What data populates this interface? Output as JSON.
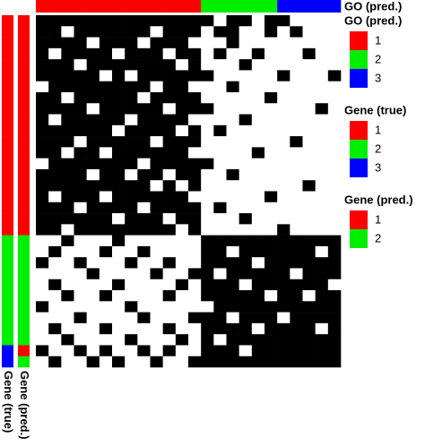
{
  "chart_data": {
    "type": "heatmap",
    "low_color": "#ffffff",
    "high_color": "#000000",
    "matrix": [
      [
        1,
        1,
        1,
        1,
        1,
        1,
        1,
        1,
        1,
        1,
        1,
        1,
        1,
        1,
        0,
        1,
        1,
        0,
        1,
        1,
        0,
        0,
        0,
        0
      ],
      [
        1,
        1,
        0,
        1,
        1,
        1,
        1,
        1,
        1,
        0,
        1,
        1,
        1,
        0,
        1,
        1,
        0,
        0,
        1,
        0,
        1,
        0,
        0,
        0
      ],
      [
        1,
        1,
        1,
        1,
        0,
        1,
        1,
        1,
        0,
        1,
        1,
        1,
        0,
        0,
        0,
        1,
        0,
        0,
        0,
        0,
        0,
        0,
        0,
        0
      ],
      [
        1,
        0,
        1,
        1,
        1,
        1,
        0,
        1,
        1,
        1,
        0,
        1,
        1,
        0,
        1,
        0,
        0,
        1,
        0,
        0,
        0,
        1,
        0,
        0
      ],
      [
        1,
        1,
        1,
        0,
        1,
        1,
        1,
        1,
        1,
        1,
        1,
        0,
        1,
        0,
        0,
        0,
        1,
        0,
        0,
        0,
        0,
        0,
        0,
        0
      ],
      [
        1,
        1,
        1,
        1,
        1,
        0,
        1,
        0,
        1,
        1,
        1,
        1,
        1,
        1,
        0,
        0,
        0,
        0,
        0,
        1,
        0,
        0,
        0,
        1
      ],
      [
        0,
        1,
        1,
        1,
        1,
        1,
        1,
        1,
        1,
        0,
        1,
        1,
        0,
        0,
        0,
        1,
        0,
        0,
        0,
        0,
        0,
        0,
        0,
        0
      ],
      [
        1,
        1,
        0,
        1,
        1,
        1,
        1,
        1,
        0,
        1,
        1,
        1,
        1,
        0,
        0,
        0,
        0,
        0,
        1,
        0,
        0,
        0,
        0,
        0
      ],
      [
        1,
        1,
        1,
        1,
        0,
        1,
        1,
        1,
        1,
        1,
        0,
        1,
        1,
        1,
        0,
        0,
        0,
        0,
        0,
        0,
        0,
        0,
        1,
        0
      ],
      [
        1,
        0,
        1,
        1,
        1,
        1,
        1,
        0,
        1,
        1,
        1,
        1,
        0,
        0,
        0,
        0,
        1,
        0,
        0,
        0,
        0,
        0,
        0,
        0
      ],
      [
        1,
        1,
        1,
        1,
        1,
        1,
        0,
        1,
        1,
        1,
        1,
        0,
        1,
        0,
        1,
        0,
        0,
        0,
        0,
        0,
        0,
        0,
        0,
        0
      ],
      [
        1,
        1,
        1,
        0,
        1,
        1,
        1,
        1,
        1,
        0,
        1,
        1,
        1,
        0,
        0,
        0,
        0,
        0,
        0,
        0,
        1,
        0,
        0,
        0
      ],
      [
        1,
        1,
        0,
        1,
        1,
        0,
        1,
        1,
        1,
        1,
        1,
        1,
        0,
        0,
        0,
        0,
        0,
        1,
        0,
        0,
        0,
        0,
        0,
        0
      ],
      [
        0,
        1,
        1,
        1,
        1,
        1,
        1,
        1,
        0,
        1,
        1,
        1,
        1,
        1,
        0,
        0,
        0,
        0,
        0,
        0,
        0,
        0,
        0,
        0
      ],
      [
        1,
        1,
        1,
        1,
        0,
        1,
        1,
        0,
        1,
        1,
        0,
        1,
        1,
        0,
        0,
        1,
        0,
        0,
        0,
        0,
        0,
        0,
        0,
        0
      ],
      [
        1,
        1,
        1,
        1,
        1,
        1,
        1,
        1,
        1,
        0,
        1,
        0,
        1,
        0,
        0,
        0,
        0,
        0,
        0,
        0,
        0,
        1,
        0,
        0
      ],
      [
        1,
        0,
        1,
        1,
        1,
        0,
        1,
        1,
        1,
        1,
        1,
        1,
        0,
        0,
        0,
        0,
        0,
        0,
        1,
        0,
        0,
        0,
        0,
        0
      ],
      [
        1,
        1,
        1,
        0,
        1,
        1,
        1,
        1,
        0,
        1,
        1,
        1,
        1,
        0,
        1,
        0,
        0,
        0,
        0,
        0,
        0,
        0,
        0,
        0
      ],
      [
        1,
        1,
        1,
        1,
        1,
        1,
        0,
        1,
        1,
        1,
        0,
        1,
        1,
        0,
        0,
        0,
        1,
        0,
        0,
        0,
        0,
        0,
        0,
        0
      ],
      [
        1,
        1,
        0,
        1,
        1,
        1,
        1,
        1,
        1,
        1,
        1,
        0,
        1,
        0,
        0,
        0,
        0,
        0,
        0,
        1,
        0,
        0,
        0,
        0
      ],
      [
        0,
        0,
        1,
        0,
        0,
        0,
        1,
        0,
        0,
        0,
        0,
        0,
        0,
        1,
        1,
        1,
        1,
        1,
        1,
        1,
        1,
        1,
        1,
        1
      ],
      [
        0,
        1,
        0,
        0,
        0,
        1,
        0,
        0,
        1,
        0,
        0,
        0,
        0,
        1,
        1,
        0,
        1,
        1,
        1,
        1,
        1,
        1,
        0,
        1
      ],
      [
        1,
        0,
        0,
        1,
        0,
        0,
        0,
        1,
        0,
        0,
        1,
        0,
        0,
        1,
        1,
        1,
        1,
        0,
        1,
        1,
        1,
        1,
        1,
        1
      ],
      [
        0,
        0,
        0,
        0,
        1,
        0,
        0,
        0,
        0,
        1,
        0,
        0,
        1,
        1,
        0,
        1,
        1,
        1,
        1,
        1,
        0,
        1,
        1,
        1
      ],
      [
        0,
        1,
        0,
        0,
        0,
        0,
        1,
        0,
        0,
        0,
        0,
        1,
        0,
        1,
        1,
        1,
        0,
        1,
        1,
        1,
        1,
        1,
        1,
        0
      ],
      [
        0,
        0,
        1,
        0,
        0,
        1,
        0,
        0,
        0,
        0,
        1,
        0,
        0,
        1,
        1,
        1,
        1,
        1,
        0,
        1,
        1,
        0,
        1,
        1
      ],
      [
        1,
        0,
        0,
        0,
        0,
        0,
        0,
        1,
        0,
        0,
        0,
        0,
        0,
        0,
        1,
        1,
        1,
        1,
        1,
        1,
        1,
        1,
        1,
        1
      ],
      [
        0,
        0,
        0,
        1,
        0,
        0,
        0,
        0,
        1,
        0,
        0,
        0,
        1,
        1,
        1,
        0,
        1,
        1,
        1,
        0,
        1,
        1,
        1,
        1
      ],
      [
        0,
        1,
        0,
        0,
        0,
        1,
        0,
        0,
        0,
        0,
        1,
        0,
        0,
        1,
        1,
        1,
        1,
        0,
        1,
        1,
        1,
        1,
        0,
        1
      ],
      [
        0,
        0,
        1,
        0,
        0,
        0,
        0,
        1,
        0,
        0,
        0,
        1,
        0,
        1,
        0,
        1,
        1,
        1,
        1,
        1,
        1,
        1,
        1,
        1
      ],
      [
        1,
        0,
        0,
        1,
        0,
        1,
        0,
        0,
        1,
        0,
        1,
        0,
        0,
        1,
        1,
        1,
        0,
        1,
        1,
        1,
        1,
        1,
        1,
        1
      ],
      [
        0,
        1,
        0,
        0,
        1,
        0,
        1,
        0,
        0,
        1,
        0,
        0,
        1,
        1,
        1,
        1,
        1,
        1,
        1,
        1,
        1,
        1,
        1,
        1
      ]
    ],
    "column_annotations": [
      {
        "name": "GO (pred.)",
        "levels": [
          1,
          2,
          3
        ],
        "colors": [
          "#ff0000",
          "#00ee00",
          "#0000ff"
        ],
        "values": [
          1,
          1,
          1,
          1,
          1,
          1,
          1,
          1,
          1,
          1,
          1,
          1,
          1,
          2,
          2,
          2,
          2,
          2,
          2,
          3,
          3,
          3,
          3,
          3
        ]
      }
    ],
    "row_annotations": [
      {
        "name": "Gene (true)",
        "levels": [
          1,
          2,
          3
        ],
        "colors": [
          "#ff0000",
          "#00ee00",
          "#0000ff"
        ],
        "values": [
          1,
          1,
          1,
          1,
          1,
          1,
          1,
          1,
          1,
          1,
          1,
          1,
          1,
          1,
          1,
          1,
          1,
          1,
          1,
          1,
          2,
          2,
          2,
          2,
          2,
          2,
          2,
          2,
          2,
          2,
          3,
          3
        ]
      },
      {
        "name": "Gene (pred.)",
        "levels": [
          1,
          2
        ],
        "colors": [
          "#ff0000",
          "#00ee00"
        ],
        "values": [
          1,
          1,
          1,
          1,
          1,
          1,
          1,
          1,
          1,
          1,
          1,
          1,
          1,
          1,
          1,
          1,
          1,
          1,
          1,
          1,
          2,
          2,
          2,
          2,
          2,
          2,
          2,
          2,
          2,
          2,
          1,
          2
        ]
      }
    ]
  }
}
